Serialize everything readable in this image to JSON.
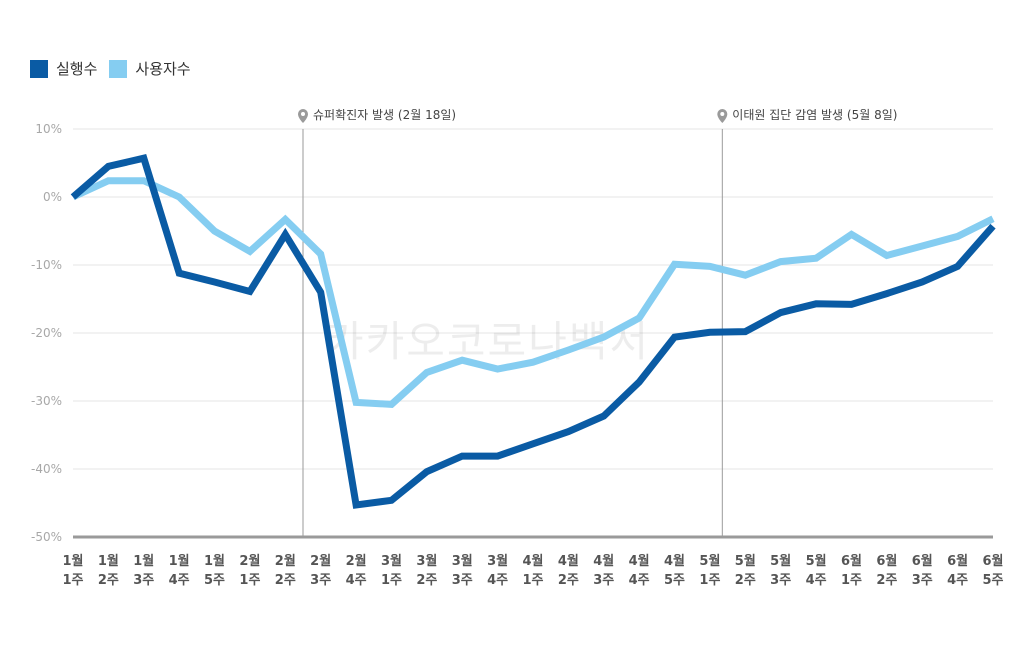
{
  "chart_data": {
    "type": "line",
    "ylim": [
      -50,
      10
    ],
    "yticks": [
      10,
      0,
      -10,
      -20,
      -30,
      -40,
      -50
    ],
    "ytick_labels": [
      "10%",
      "0%",
      "-10%",
      "-20%",
      "-30%",
      "-40%",
      "-50%"
    ],
    "categories": [
      [
        "1월",
        "1주"
      ],
      [
        "1월",
        "2주"
      ],
      [
        "1월",
        "3주"
      ],
      [
        "1월",
        "4주"
      ],
      [
        "1월",
        "5주"
      ],
      [
        "2월",
        "1주"
      ],
      [
        "2월",
        "2주"
      ],
      [
        "2월",
        "3주"
      ],
      [
        "2월",
        "4주"
      ],
      [
        "3월",
        "1주"
      ],
      [
        "3월",
        "2주"
      ],
      [
        "3월",
        "3주"
      ],
      [
        "3월",
        "4주"
      ],
      [
        "4월",
        "1주"
      ],
      [
        "4월",
        "2주"
      ],
      [
        "4월",
        "3주"
      ],
      [
        "4월",
        "4주"
      ],
      [
        "4월",
        "5주"
      ],
      [
        "5월",
        "1주"
      ],
      [
        "5월",
        "2주"
      ],
      [
        "5월",
        "3주"
      ],
      [
        "5월",
        "4주"
      ],
      [
        "6월",
        "1주"
      ],
      [
        "6월",
        "2주"
      ],
      [
        "6월",
        "3주"
      ],
      [
        "6월",
        "4주"
      ],
      [
        "6월",
        "5주"
      ]
    ],
    "series": [
      {
        "name": "실행수",
        "color": "#0a5ba4",
        "values": [
          0,
          4.5,
          5.7,
          -11.2,
          -12.5,
          -13.9,
          -5.5,
          -14,
          -45.3,
          -44.6,
          -40.4,
          -38.1,
          -38.1,
          -36.3,
          -34.5,
          -32.2,
          -27.2,
          -20.6,
          -19.9,
          -19.8,
          -17,
          -15.7,
          -15.8,
          -14.2,
          -12.5,
          -10.2,
          -4.3
        ]
      },
      {
        "name": "사용자수",
        "color": "#85cdf1",
        "values": [
          0,
          2.4,
          2.4,
          0,
          -5,
          -8,
          -3.3,
          -8.4,
          -30.2,
          -30.5,
          -25.8,
          -24,
          -25.3,
          -24.3,
          -22.5,
          -20.6,
          -17.8,
          -9.9,
          -10.2,
          -11.5,
          -9.5,
          -9,
          -5.5,
          -8.6,
          -7.2,
          -5.8,
          -3.2
        ]
      }
    ],
    "events": [
      {
        "after_index": 6.5,
        "label": "슈퍼확진자 발생 (2월 18일)"
      },
      {
        "after_index": 18.35,
        "label": "이태원 집단 감염 발생 (5월 8일)"
      }
    ],
    "watermark": "카카오코로나백서",
    "legend_position": "top-left",
    "grid": true
  }
}
